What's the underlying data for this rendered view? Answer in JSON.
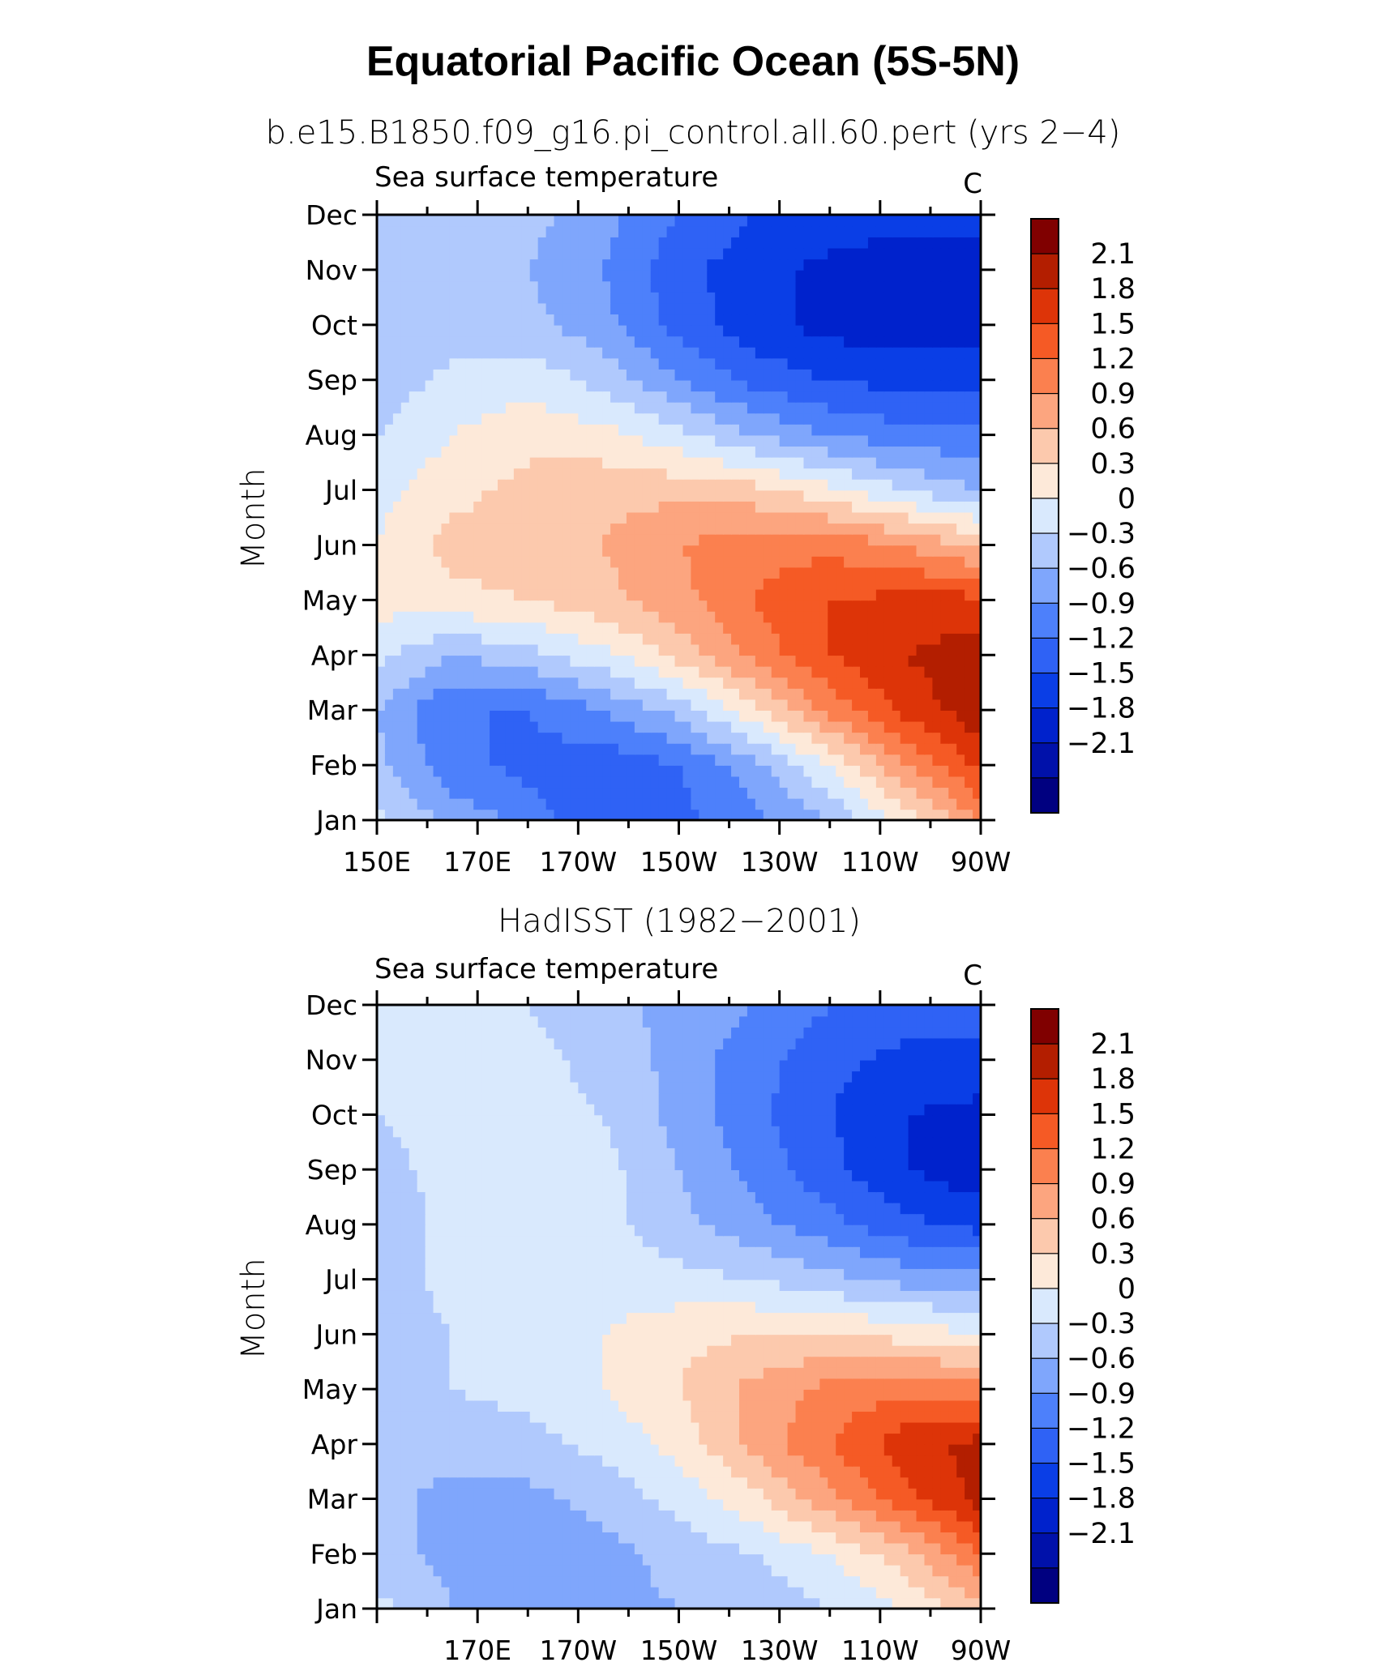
{
  "figure": {
    "title": "Equatorial Pacific Ocean (5S-5N)"
  },
  "colorbar": {
    "colors": [
      "#000080",
      "#0011aa",
      "#0022cc",
      "#0a3ee6",
      "#2f62f5",
      "#4d80fb",
      "#7fa6fc",
      "#b0c9fd",
      "#d9e9fd",
      "#fde9d9",
      "#fcc9ad",
      "#fca57f",
      "#fb804f",
      "#f55a25",
      "#dd3408",
      "#b31e00",
      "#800000"
    ],
    "labels": [
      "2.1",
      "1.8",
      "1.5",
      "1.2",
      "0.9",
      "0.6",
      "0.3",
      "0",
      "−0.3",
      "−0.6",
      "−0.9",
      "−1.2",
      "−1.5",
      "−1.8",
      "−2.1"
    ]
  },
  "chart_data": [
    {
      "type": "heatmap",
      "title": "b.e15.B1850.f09_g16.pi_control.all.60.pert (yrs 2−4)",
      "left_string": "Sea surface temperature",
      "right_string": "C",
      "ylabel": "Month",
      "x_ticks": [
        "150E",
        "170E",
        "170W",
        "150W",
        "130W",
        "110W",
        "90W"
      ],
      "x_range": [
        150,
        270
      ],
      "y_ticks": [
        "Jan",
        "Feb",
        "Mar",
        "Apr",
        "May",
        "Jun",
        "Jul",
        "Aug",
        "Sep",
        "Oct",
        "Nov",
        "Dec"
      ],
      "contour_levels": [
        -2.1,
        -1.8,
        -1.5,
        -1.2,
        -0.9,
        -0.6,
        -0.3,
        0,
        0.3,
        0.6,
        0.9,
        1.2,
        1.5,
        1.8,
        2.1
      ],
      "lon": [
        150,
        165,
        180,
        195,
        210,
        225,
        240,
        255,
        270
      ],
      "z": [
        [
          0.1,
          -0.4,
          -0.7,
          -1.2,
          -1.0,
          -0.7,
          -0.3,
          0.4,
          1.2
        ],
        [
          -0.2,
          -0.8,
          -1.0,
          -1.1,
          -0.9,
          -0.4,
          0.3,
          1.2,
          1.9
        ],
        [
          -0.3,
          -0.9,
          -0.9,
          -0.6,
          -0.2,
          0.5,
          1.3,
          1.9,
          2.3
        ],
        [
          0.1,
          -0.3,
          -0.1,
          0.2,
          0.7,
          1.3,
          1.8,
          2.1,
          2.3
        ],
        [
          0.4,
          0.5,
          0.6,
          0.8,
          1.1,
          1.5,
          1.8,
          1.9,
          1.9
        ],
        [
          0.3,
          0.7,
          0.8,
          0.9,
          1.2,
          1.4,
          1.4,
          1.2,
          0.8
        ],
        [
          0.2,
          0.5,
          0.7,
          0.8,
          0.8,
          0.7,
          0.4,
          0.0,
          -0.3
        ],
        [
          0.0,
          0.3,
          0.5,
          0.4,
          0.1,
          -0.3,
          -0.6,
          -0.8,
          -0.8
        ],
        [
          -0.2,
          0.1,
          0.2,
          -0.1,
          -0.6,
          -1.0,
          -1.2,
          -1.3,
          -1.3
        ],
        [
          -0.3,
          -0.2,
          -0.2,
          -0.5,
          -1.0,
          -1.4,
          -1.6,
          -1.7,
          -1.7
        ],
        [
          -0.2,
          -0.2,
          -0.3,
          -0.6,
          -1.1,
          -1.4,
          -1.6,
          -1.7,
          -1.7
        ],
        [
          -0.1,
          -0.1,
          -0.2,
          -0.5,
          -0.9,
          -1.2,
          -1.3,
          -1.4,
          -1.4
        ]
      ]
    },
    {
      "type": "heatmap",
      "title": "HadISST (1982−2001)",
      "left_string": "Sea surface temperature",
      "right_string": "C",
      "ylabel": "Month",
      "x_ticks": [
        "170E",
        "170W",
        "150W",
        "130W",
        "110W",
        "90W"
      ],
      "x_range": [
        150,
        270
      ],
      "y_ticks": [
        "Jan",
        "Feb",
        "Mar",
        "Apr",
        "May",
        "Jun",
        "Jul",
        "Aug",
        "Sep",
        "Oct",
        "Nov",
        "Dec"
      ],
      "contour_levels": [
        -2.1,
        -1.8,
        -1.5,
        -1.2,
        -0.9,
        -0.6,
        -0.3,
        0,
        0.3,
        0.6,
        0.9,
        1.2,
        1.5,
        1.8,
        2.1
      ],
      "lon": [
        150,
        165,
        180,
        195,
        210,
        225,
        240,
        255,
        270
      ],
      "z": [
        [
          0.1,
          -0.3,
          -0.4,
          -0.4,
          -0.3,
          -0.2,
          0.0,
          0.3,
          0.8
        ],
        [
          -0.2,
          -0.4,
          -0.5,
          -0.4,
          -0.2,
          0.0,
          0.3,
          0.8,
          1.5
        ],
        [
          -0.2,
          -0.4,
          -0.4,
          -0.2,
          0.1,
          0.5,
          1.1,
          1.7,
          2.2
        ],
        [
          -0.1,
          -0.2,
          -0.1,
          0.1,
          0.4,
          1.0,
          1.5,
          2.0,
          2.2
        ],
        [
          0.0,
          0.0,
          0.1,
          0.3,
          0.6,
          1.0,
          1.3,
          1.4,
          1.4
        ],
        [
          -0.1,
          0.0,
          0.1,
          0.3,
          0.5,
          0.6,
          0.6,
          0.5,
          0.3
        ],
        [
          -0.2,
          0.1,
          0.2,
          0.2,
          0.1,
          0.0,
          -0.2,
          -0.4,
          -0.5
        ],
        [
          -0.2,
          0.1,
          0.2,
          0.1,
          -0.2,
          -0.5,
          -0.8,
          -1.1,
          -1.3
        ],
        [
          -0.1,
          0.1,
          0.2,
          0.1,
          -0.3,
          -0.7,
          -1.1,
          -1.5,
          -1.7
        ],
        [
          0.0,
          0.1,
          0.1,
          0.0,
          -0.4,
          -0.8,
          -1.2,
          -1.5,
          -1.6
        ],
        [
          0.0,
          0.1,
          0.1,
          -0.1,
          -0.4,
          -0.8,
          -1.1,
          -1.3,
          -1.3
        ],
        [
          0.0,
          0.0,
          0.0,
          -0.2,
          -0.4,
          -0.6,
          -0.9,
          -1.0,
          -1.0
        ]
      ]
    }
  ]
}
